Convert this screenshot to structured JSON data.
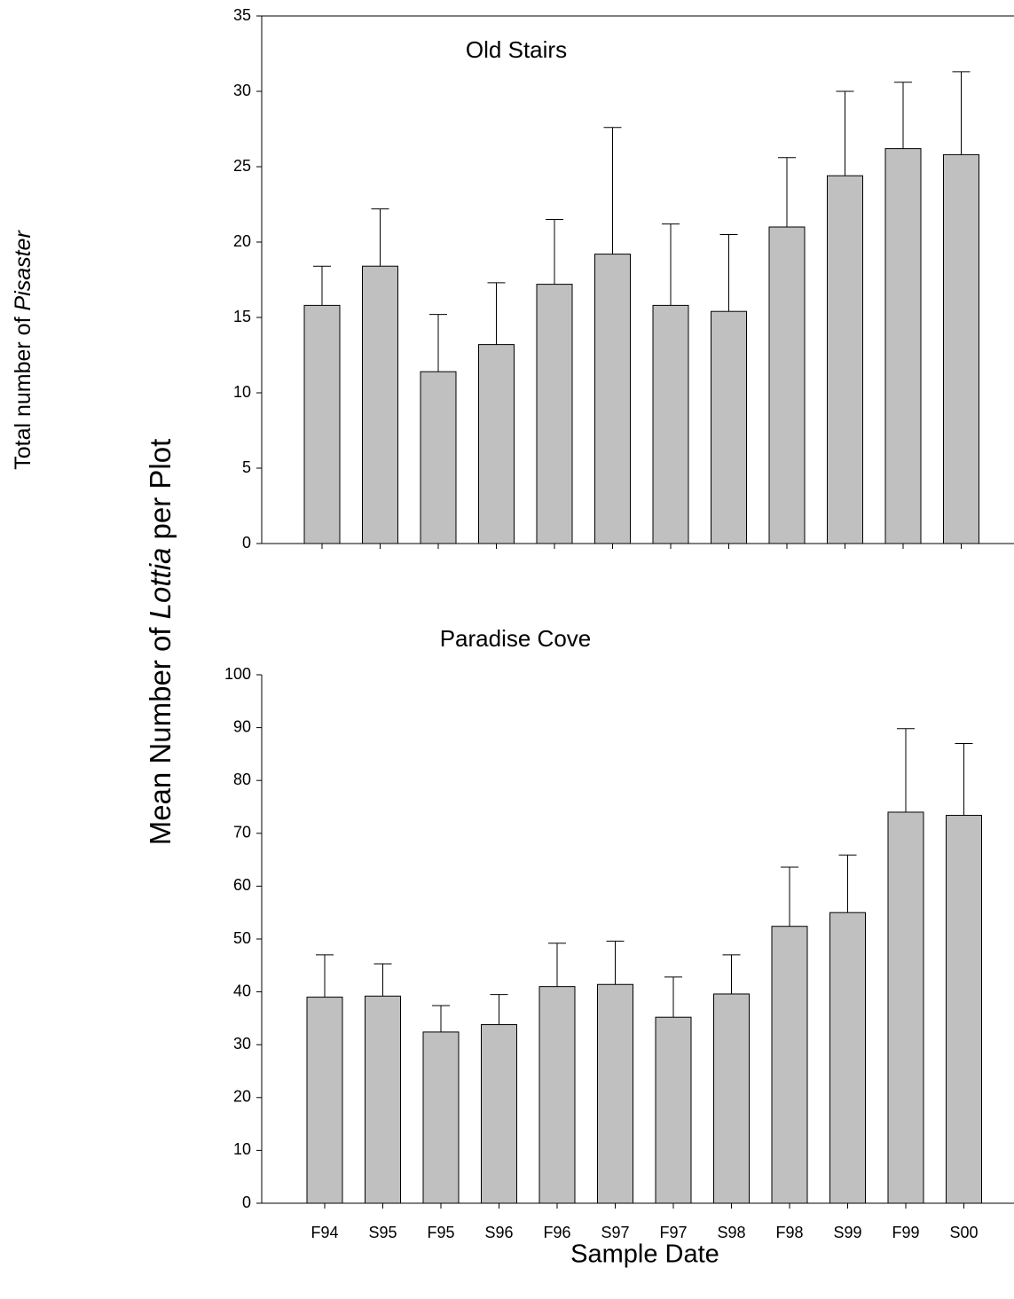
{
  "shared": {
    "ylabel_parts": [
      "Mean Number of ",
      "Lottia",
      " per Plot"
    ],
    "xlabel": "Sample Date",
    "cropped_label_parts": [
      "Total number of ",
      "Pisaster"
    ]
  },
  "chart_data": [
    {
      "type": "bar",
      "title": "Old Stairs",
      "color": "#c0c0c0",
      "categories": [
        null,
        null,
        null,
        null,
        null,
        null,
        null,
        null,
        null,
        null,
        null,
        null
      ],
      "values": [
        15.8,
        18.4,
        11.4,
        13.2,
        17.2,
        19.2,
        15.8,
        15.4,
        21.0,
        24.4,
        26.2,
        25.8
      ],
      "errors": [
        2.6,
        3.8,
        3.8,
        4.1,
        4.3,
        8.4,
        5.4,
        5.1,
        4.6,
        5.6,
        4.4,
        5.5
      ],
      "ylim": [
        0,
        35
      ],
      "yticks": [
        0,
        5,
        10,
        15,
        20,
        25,
        30,
        35
      ]
    },
    {
      "type": "bar",
      "title": "Paradise Cove",
      "color": "#c0c0c0",
      "categories": [
        "F94",
        "S95",
        "F95",
        "S96",
        "F96",
        "S97",
        "F97",
        "S98",
        "F98",
        "S99",
        "F99",
        "S00"
      ],
      "values": [
        39,
        39.2,
        32.4,
        33.8,
        41,
        41.4,
        35.2,
        39.6,
        52.4,
        55,
        74,
        73.4
      ],
      "errors": [
        8,
        6.1,
        5,
        5.7,
        8.2,
        8.2,
        7.6,
        7.4,
        11.2,
        10.9,
        15.8,
        13.6
      ],
      "ylim": [
        0,
        100
      ],
      "yticks": [
        0,
        10,
        20,
        30,
        40,
        50,
        60,
        70,
        80,
        90,
        100
      ]
    }
  ]
}
